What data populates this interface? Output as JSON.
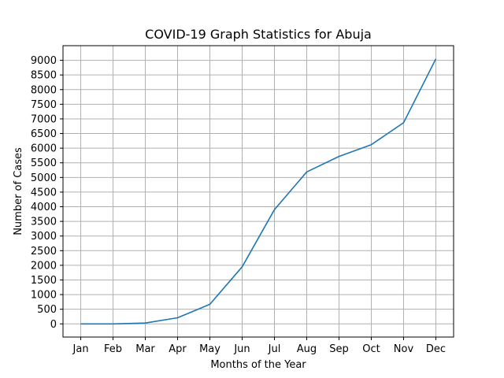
{
  "chart_data": {
    "type": "line",
    "title": "COVID-19 Graph Statistics for Abuja",
    "xlabel": "Months of the Year",
    "ylabel": "Number of Cases",
    "categories": [
      "Jan",
      "Feb",
      "Mar",
      "Apr",
      "May",
      "Jun",
      "Jul",
      "Aug",
      "Sep",
      "Oct",
      "Nov",
      "Dec"
    ],
    "series": [
      {
        "values": [
          0,
          0,
          30,
          210,
          670,
          1950,
          3900,
          5190,
          5720,
          6120,
          6870,
          9050
        ]
      }
    ],
    "yticks": [
      0,
      500,
      1000,
      1500,
      2000,
      2500,
      3000,
      3500,
      4000,
      4500,
      5000,
      5500,
      6000,
      6500,
      7000,
      7500,
      8000,
      8500,
      9000
    ],
    "ylim": [
      -450,
      9500
    ],
    "grid": true,
    "line_color": "#1f77b4",
    "grid_color": "#b0b0b0"
  }
}
